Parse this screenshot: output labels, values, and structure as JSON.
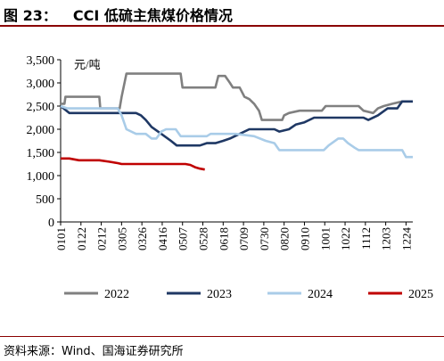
{
  "figure": {
    "label": "图 23：",
    "title": "CCI 低硫主焦煤价格情况",
    "source": "资料来源：Wind、国海证券研究所"
  },
  "chart_data": {
    "type": "line",
    "unit": "元/吨",
    "ylim": [
      0,
      3500
    ],
    "yticks": [
      0,
      500,
      1000,
      1500,
      2000,
      2500,
      3000,
      3500
    ],
    "ytick_labels": [
      "0",
      "500",
      "1,000",
      "1,500",
      "2,000",
      "2,500",
      "3,000",
      "3,500"
    ],
    "xticks": [
      "0101",
      "0122",
      "0212",
      "0305",
      "0326",
      "0416",
      "0507",
      "0528",
      "0618",
      "0709",
      "0730",
      "0820",
      "0910",
      "1001",
      "1022",
      "1112",
      "1203",
      "1224"
    ],
    "legend_position": "bottom",
    "grid": false,
    "series": [
      {
        "name": "2022",
        "color": "#808080",
        "points": [
          [
            "0101",
            2550
          ],
          [
            "0105",
            2550
          ],
          [
            "0106",
            2700
          ],
          [
            "0210",
            2700
          ],
          [
            "0211",
            2450
          ],
          [
            "0303",
            2450
          ],
          [
            "0305",
            2700
          ],
          [
            "0310",
            3200
          ],
          [
            "0505",
            3200
          ],
          [
            "0507",
            2900
          ],
          [
            "0610",
            2900
          ],
          [
            "0613",
            3150
          ],
          [
            "0620",
            3150
          ],
          [
            "0625",
            3000
          ],
          [
            "0628",
            2900
          ],
          [
            "0705",
            2900
          ],
          [
            "0710",
            2700
          ],
          [
            "0715",
            2650
          ],
          [
            "0720",
            2550
          ],
          [
            "0725",
            2400
          ],
          [
            "0728",
            2200
          ],
          [
            "0818",
            2200
          ],
          [
            "0820",
            2300
          ],
          [
            "0825",
            2350
          ],
          [
            "0905",
            2400
          ],
          [
            "0928",
            2400
          ],
          [
            "1002",
            2500
          ],
          [
            "1105",
            2500
          ],
          [
            "1110",
            2400
          ],
          [
            "1120",
            2350
          ],
          [
            "1125",
            2450
          ],
          [
            "1201",
            2500
          ],
          [
            "1210",
            2550
          ],
          [
            "1220",
            2600
          ],
          [
            "1231",
            2600
          ]
        ]
      },
      {
        "name": "2023",
        "color": "#1f3864",
        "points": [
          [
            "0101",
            2500
          ],
          [
            "0110",
            2350
          ],
          [
            "0320",
            2350
          ],
          [
            "0325",
            2300
          ],
          [
            "0330",
            2200
          ],
          [
            "0405",
            2050
          ],
          [
            "0415",
            1900
          ],
          [
            "0425",
            1750
          ],
          [
            "0501",
            1650
          ],
          [
            "0520",
            1650
          ],
          [
            "0525",
            1650
          ],
          [
            "0601",
            1700
          ],
          [
            "0610",
            1700
          ],
          [
            "0618",
            1750
          ],
          [
            "0625",
            1800
          ],
          [
            "0705",
            1900
          ],
          [
            "0715",
            2000
          ],
          [
            "0810",
            2000
          ],
          [
            "0815",
            1950
          ],
          [
            "0825",
            2000
          ],
          [
            "0901",
            2100
          ],
          [
            "0910",
            2150
          ],
          [
            "0920",
            2250
          ],
          [
            "1110",
            2250
          ],
          [
            "1115",
            2200
          ],
          [
            "1125",
            2300
          ],
          [
            "1205",
            2450
          ],
          [
            "1215",
            2450
          ],
          [
            "1220",
            2600
          ],
          [
            "1231",
            2600
          ]
        ]
      },
      {
        "name": "2024",
        "color": "#a9cce8",
        "points": [
          [
            "0101",
            2500
          ],
          [
            "0108",
            2450
          ],
          [
            "0301",
            2450
          ],
          [
            "0305",
            2300
          ],
          [
            "0310",
            2000
          ],
          [
            "0320",
            1900
          ],
          [
            "0330",
            1900
          ],
          [
            "0405",
            1800
          ],
          [
            "0410",
            1800
          ],
          [
            "0415",
            1950
          ],
          [
            "0420",
            2000
          ],
          [
            "0430",
            2000
          ],
          [
            "0505",
            1850
          ],
          [
            "0601",
            1850
          ],
          [
            "0605",
            1900
          ],
          [
            "0701",
            1900
          ],
          [
            "0720",
            1850
          ],
          [
            "0801",
            1750
          ],
          [
            "0810",
            1700
          ],
          [
            "0815",
            1550
          ],
          [
            "0930",
            1550
          ],
          [
            "1005",
            1650
          ],
          [
            "1015",
            1800
          ],
          [
            "1020",
            1800
          ],
          [
            "1025",
            1700
          ],
          [
            "1101",
            1600
          ],
          [
            "1105",
            1550
          ],
          [
            "1220",
            1550
          ],
          [
            "1224",
            1400
          ],
          [
            "1231",
            1400
          ]
        ]
      },
      {
        "name": "2025",
        "color": "#c00000",
        "points": [
          [
            "0101",
            1370
          ],
          [
            "0110",
            1370
          ],
          [
            "0120",
            1330
          ],
          [
            "0210",
            1330
          ],
          [
            "0220",
            1300
          ],
          [
            "0301",
            1270
          ],
          [
            "0305",
            1250
          ],
          [
            "0330",
            1250
          ],
          [
            "0415",
            1250
          ],
          [
            "0430",
            1250
          ],
          [
            "0510",
            1250
          ],
          [
            "0515",
            1230
          ],
          [
            "0520",
            1180
          ],
          [
            "0525",
            1150
          ],
          [
            "0530",
            1130
          ]
        ]
      }
    ]
  }
}
